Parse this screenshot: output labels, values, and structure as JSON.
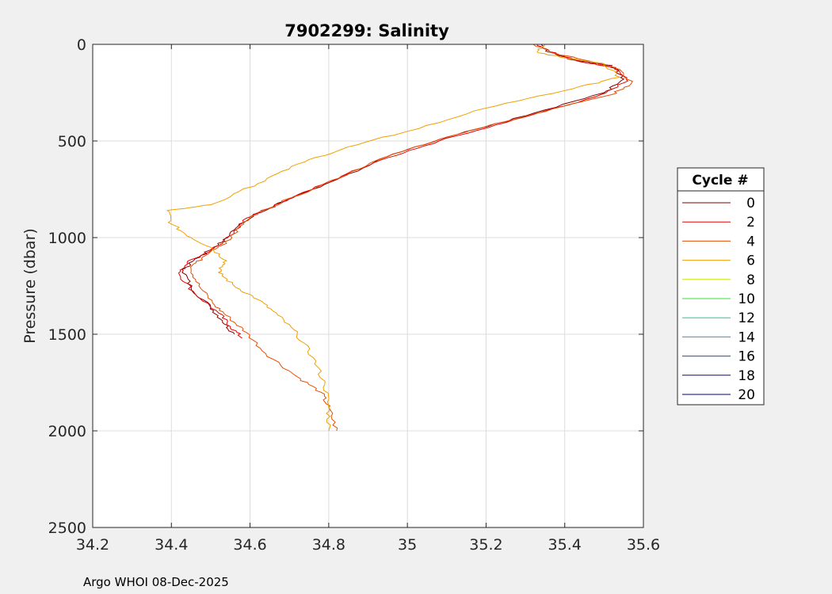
{
  "footer": "Argo WHOI 08-Dec-2025",
  "chart_data": {
    "type": "line",
    "title": "7902299:  Salinity",
    "xlabel": "",
    "ylabel": "Pressure (dbar)",
    "xlim": [
      34.2,
      35.6
    ],
    "ylim": [
      0,
      2500
    ],
    "y_reversed": true,
    "grid": true,
    "x_ticks": [
      "34.2",
      "34.4",
      "34.6",
      "34.8",
      "35",
      "35.2",
      "35.4",
      "35.6"
    ],
    "y_ticks": [
      "0",
      "500",
      "1000",
      "1500",
      "2000",
      "2500"
    ],
    "legend": {
      "title": "Cycle #",
      "placement": "right",
      "entries": [
        {
          "label": "0",
          "color": "#800000"
        },
        {
          "label": "2",
          "color": "#e60000"
        },
        {
          "label": "4",
          "color": "#e64d00"
        },
        {
          "label": "6",
          "color": "#f0a000"
        },
        {
          "label": "8",
          "color": "#c8e600"
        },
        {
          "label": "10",
          "color": "#33e633"
        },
        {
          "label": "12",
          "color": "#00d9a0"
        },
        {
          "label": "14",
          "color": "#00a6e6"
        },
        {
          "label": "16",
          "color": "#0050e6"
        },
        {
          "label": "18",
          "color": "#0000c8"
        },
        {
          "label": "20",
          "color": "#000080"
        }
      ]
    },
    "series": [
      {
        "color": "#800000",
        "points": [
          [
            35.34,
            0
          ],
          [
            35.36,
            40
          ],
          [
            35.42,
            80
          ],
          [
            35.52,
            110
          ],
          [
            35.55,
            180
          ],
          [
            35.5,
            250
          ],
          [
            35.3,
            370
          ],
          [
            35.1,
            480
          ],
          [
            34.95,
            580
          ],
          [
            34.82,
            700
          ],
          [
            34.7,
            800
          ],
          [
            34.61,
            880
          ],
          [
            34.56,
            960
          ],
          [
            34.52,
            1040
          ],
          [
            34.46,
            1110
          ],
          [
            34.43,
            1170
          ],
          [
            34.45,
            1260
          ],
          [
            34.5,
            1360
          ],
          [
            34.53,
            1430
          ],
          [
            34.56,
            1500
          ]
        ]
      },
      {
        "color": "#e60000",
        "points": [
          [
            35.33,
            0
          ],
          [
            35.38,
            50
          ],
          [
            35.44,
            90
          ],
          [
            35.53,
            120
          ],
          [
            35.56,
            190
          ],
          [
            35.48,
            270
          ],
          [
            35.27,
            390
          ],
          [
            35.08,
            500
          ],
          [
            34.93,
            600
          ],
          [
            34.8,
            710
          ],
          [
            34.68,
            820
          ],
          [
            34.59,
            900
          ],
          [
            34.55,
            990
          ],
          [
            34.5,
            1070
          ],
          [
            34.44,
            1130
          ],
          [
            34.42,
            1190
          ],
          [
            34.46,
            1290
          ],
          [
            34.52,
            1390
          ],
          [
            34.55,
            1460
          ],
          [
            34.58,
            1520
          ]
        ]
      },
      {
        "color": "#e64d00",
        "points": [
          [
            35.32,
            0
          ],
          [
            35.37,
            45
          ],
          [
            35.46,
            85
          ],
          [
            35.54,
            130
          ],
          [
            35.57,
            200
          ],
          [
            35.52,
            260
          ],
          [
            35.32,
            360
          ],
          [
            35.12,
            470
          ],
          [
            34.96,
            570
          ],
          [
            34.83,
            690
          ],
          [
            34.71,
            790
          ],
          [
            34.62,
            870
          ],
          [
            34.57,
            950
          ],
          [
            34.54,
            1030
          ],
          [
            34.48,
            1100
          ],
          [
            34.45,
            1160
          ],
          [
            34.47,
            1250
          ],
          [
            34.51,
            1350
          ],
          [
            34.55,
            1420
          ],
          [
            34.59,
            1490
          ],
          [
            34.64,
            1600
          ],
          [
            34.72,
            1720
          ],
          [
            34.78,
            1800
          ],
          [
            34.8,
            1880
          ],
          [
            34.82,
            2000
          ]
        ]
      },
      {
        "color": "#f0a000",
        "points": [
          [
            35.35,
            0
          ],
          [
            35.33,
            40
          ],
          [
            35.4,
            70
          ],
          [
            35.5,
            100
          ],
          [
            35.54,
            170
          ],
          [
            35.42,
            230
          ],
          [
            35.2,
            330
          ],
          [
            35.0,
            450
          ],
          [
            34.85,
            530
          ],
          [
            34.72,
            620
          ],
          [
            34.62,
            720
          ],
          [
            34.5,
            830
          ],
          [
            34.39,
            860
          ],
          [
            34.4,
            930
          ],
          [
            34.45,
            1000
          ],
          [
            34.5,
            1050
          ],
          [
            34.54,
            1120
          ],
          [
            34.52,
            1180
          ],
          [
            34.56,
            1250
          ],
          [
            34.62,
            1320
          ],
          [
            34.67,
            1400
          ],
          [
            34.72,
            1500
          ],
          [
            34.76,
            1620
          ],
          [
            34.79,
            1760
          ],
          [
            34.8,
            1880
          ],
          [
            34.8,
            2000
          ]
        ]
      }
    ]
  }
}
